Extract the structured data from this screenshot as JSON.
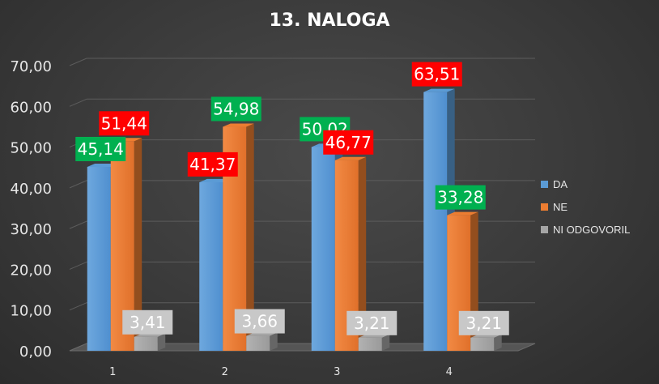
{
  "chart_data": {
    "type": "bar",
    "title": "13. NALOGA",
    "categories": [
      "1",
      "2",
      "3",
      "4"
    ],
    "ylim": [
      0,
      70
    ],
    "yticks": [
      "0,00",
      "10,00",
      "20,00",
      "30,00",
      "40,00",
      "50,00",
      "60,00",
      "70,00"
    ],
    "grid": true,
    "legend_position": "right",
    "series": [
      {
        "name": "DA",
        "values": [
          45.14,
          41.37,
          50.02,
          63.51
        ],
        "labels": [
          "45,14",
          "41,37",
          "50,02",
          "63,51"
        ],
        "color": "#5b9bd5",
        "label_bg": [
          "#00b050",
          "#ff0000",
          "#00b050",
          "#ff0000"
        ]
      },
      {
        "name": "NE",
        "values": [
          51.44,
          54.98,
          46.77,
          33.28
        ],
        "labels": [
          "51,44",
          "54,98",
          "46,77",
          "33,28"
        ],
        "color": "#ed7d31",
        "label_bg": [
          "#ff0000",
          "#00b050",
          "#ff0000",
          "#00b050"
        ]
      },
      {
        "name": "NI ODGOVORIL",
        "values": [
          3.41,
          3.66,
          3.21,
          3.21
        ],
        "labels": [
          "3,41",
          "3,66",
          "3,21",
          "3,21"
        ],
        "color": "#a5a5a5",
        "label_bg": [
          "#c8c8c8",
          "#c8c8c8",
          "#c8c8c8",
          "#c8c8c8"
        ]
      }
    ]
  }
}
